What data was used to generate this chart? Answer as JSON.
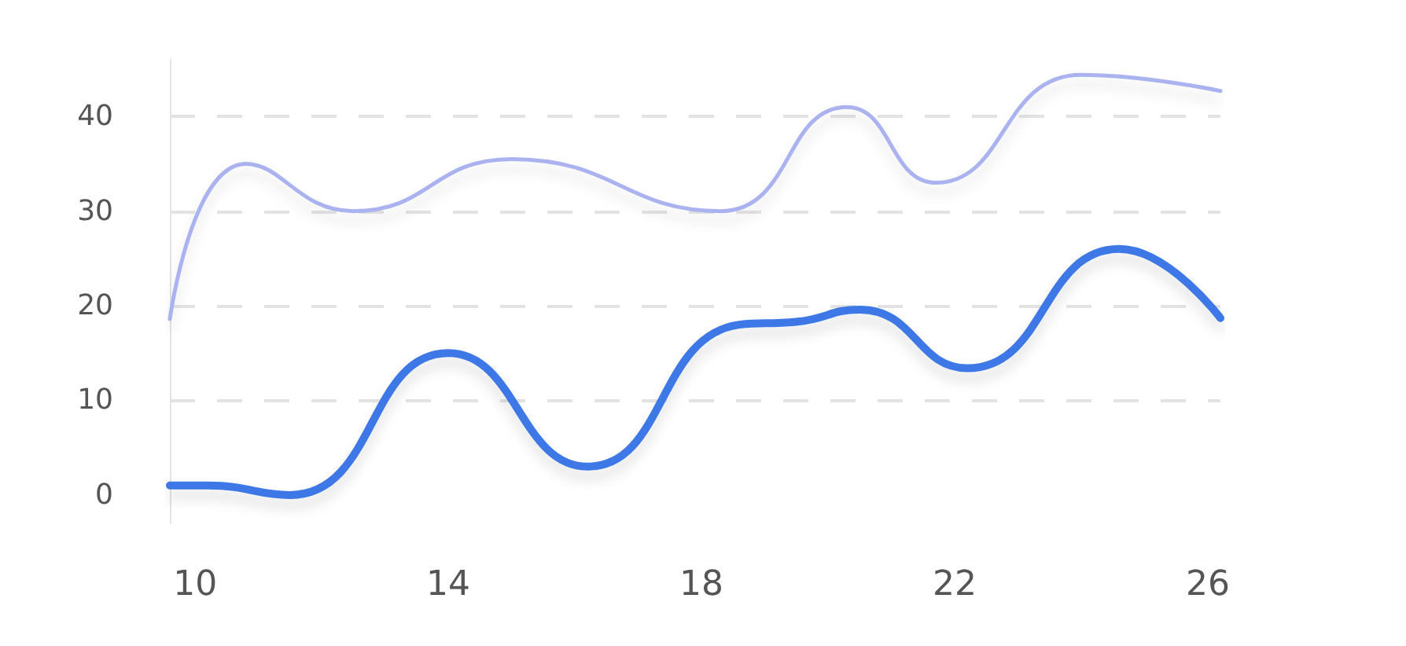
{
  "chart_data": {
    "type": "line",
    "xlim": [
      9.6,
      26.2
    ],
    "xticks": [
      10,
      14,
      18,
      22,
      26
    ],
    "ylim": [
      -3,
      46
    ],
    "yticks": [
      0,
      10,
      20,
      30,
      40
    ],
    "grid": "y",
    "marker": "none",
    "line_style": "solid",
    "series": [
      {
        "color": "#aab3f0",
        "x": [
          9.6,
          10.8,
          12.5,
          15.0,
          18.3,
          20.3,
          21.7,
          24.0,
          26.2
        ],
        "values": [
          18.6,
          35,
          30,
          35.5,
          30,
          41,
          33,
          44.4,
          42.7
        ]
      },
      {
        "color": "#3c78e6",
        "x": [
          9.6,
          10.2,
          11.5,
          14,
          16.2,
          18.6,
          19.5,
          20.5,
          22.2,
          24.6,
          26.2
        ],
        "values": [
          1,
          1,
          0,
          15,
          3,
          18,
          18.3,
          19.6,
          13.4,
          26,
          18.7
        ]
      }
    ]
  }
}
